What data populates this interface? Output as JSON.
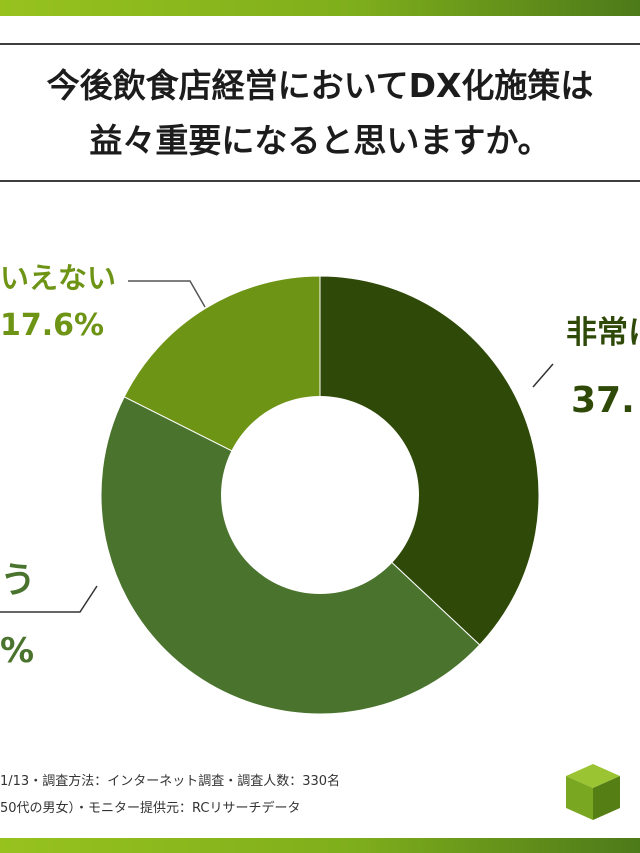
{
  "title": {
    "line1": "今後飲食店経営においてDX化施策は",
    "line2": "益々重要になると思いますか。"
  },
  "chart_data": {
    "type": "pie",
    "donut": true,
    "slices": [
      {
        "label": "非常に",
        "value": 37.0,
        "value_label": "37.",
        "color": "#2f4a08"
      },
      {
        "label": "う",
        "value": 45.4,
        "value_label": "%",
        "color": "#4a732d"
      },
      {
        "label": "いえない",
        "value": 17.6,
        "value_label": "17.6%",
        "color": "#6e9416"
      }
    ]
  },
  "footer": {
    "line1": "1/13・調査方法：インターネット調査・調査人数：330名",
    "line2": "50代の男女）・モニター提供元：RCリサーチデータ"
  },
  "colors": {
    "accent": "#8bbd1e",
    "dark_green": "#2f4a08",
    "label_green": "#6e9416"
  }
}
